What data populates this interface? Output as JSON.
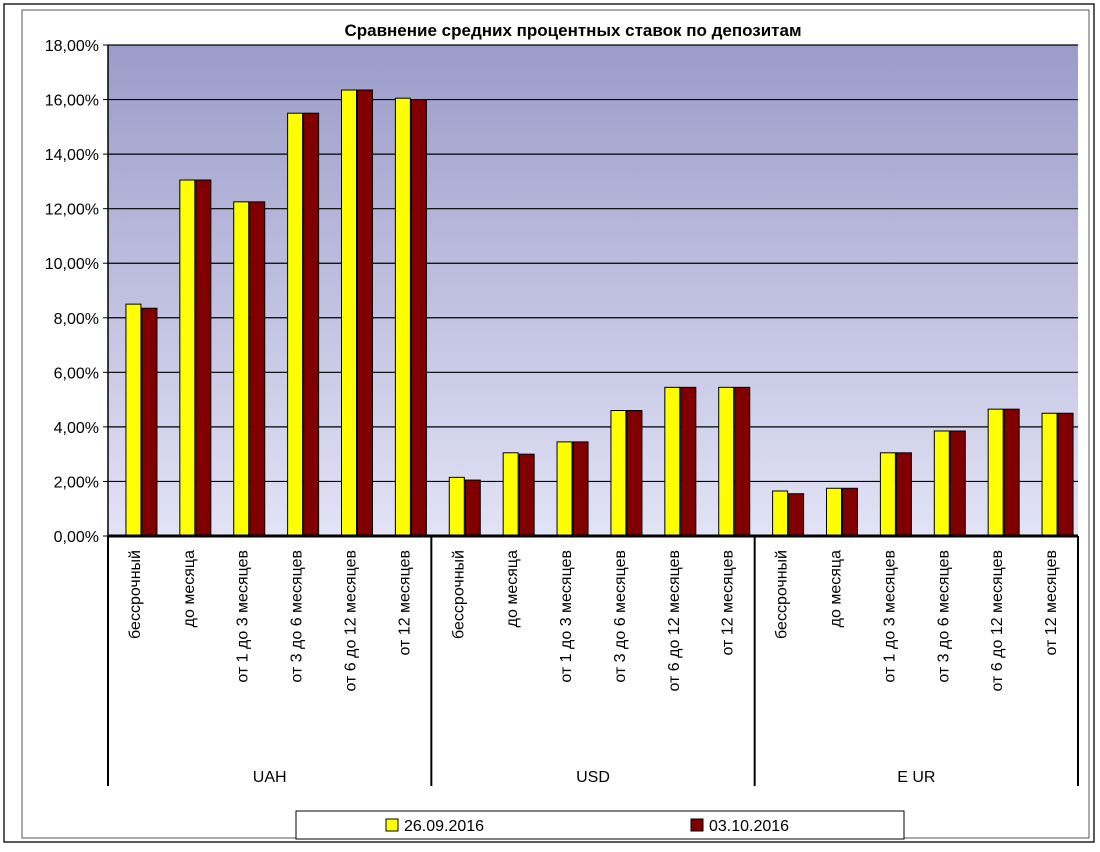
{
  "chart_data": {
    "type": "bar",
    "title": "Сравнение средних процентных ставок по депозитам",
    "xlabel": "",
    "ylabel": "",
    "ylim": [
      0,
      18
    ],
    "y_ticks": [
      "0,00%",
      "2,00%",
      "4,00%",
      "6,00%",
      "8,00%",
      "10,00%",
      "12,00%",
      "14,00%",
      "16,00%",
      "18,00%"
    ],
    "y_tick_values": [
      0,
      2,
      4,
      6,
      8,
      10,
      12,
      14,
      16,
      18
    ],
    "groups": [
      "UAH",
      "USD",
      "EUR"
    ],
    "group_labels": [
      "UAH",
      "USD",
      "E UR"
    ],
    "categories": [
      "бессрочный",
      "до месяца",
      "от 1 до 3 месяцев",
      "от 3 до 6 месяцев",
      "от 6 до 12 месяцев",
      "от 12 месяцев",
      "бессрочный",
      "до месяца",
      "от 1 до 3 месяцев",
      "от 3 до 6 месяцев",
      "от 6 до 12 месяцев",
      "от 12 месяцев",
      "бессрочный",
      "до месяца",
      "от 1 до 3 месяцев",
      "от 3 до 6 месяцев",
      "от 6 до 12 месяцев",
      "от 12 месяцев"
    ],
    "series": [
      {
        "name": "26.09.2016",
        "color": "#ffff00",
        "values": [
          8.5,
          13.05,
          12.25,
          15.5,
          16.35,
          16.05,
          2.15,
          3.05,
          3.45,
          4.6,
          5.45,
          5.45,
          1.65,
          1.75,
          3.05,
          3.85,
          4.65,
          4.5
        ]
      },
      {
        "name": "03.10.2016",
        "color": "#800000",
        "values": [
          8.35,
          13.05,
          12.25,
          15.5,
          16.35,
          16.0,
          2.05,
          3.0,
          3.45,
          4.6,
          5.45,
          5.45,
          1.55,
          1.75,
          3.05,
          3.85,
          4.65,
          4.5
        ]
      }
    ],
    "grid": true,
    "legend_position": "bottom"
  },
  "colors": {
    "plot_top": "#9b9cc9",
    "plot_bottom": "#e2e3f6",
    "gridline": "#000000"
  }
}
